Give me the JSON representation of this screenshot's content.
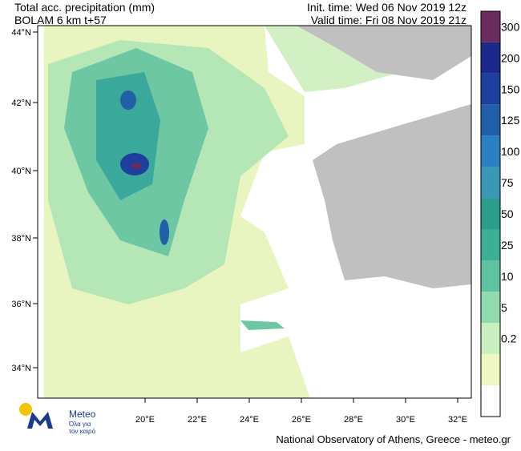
{
  "header": {
    "title": "Total acc. precipitation (mm)",
    "model": "BOLAM 6 km t+57",
    "init_time": "Init. time: Wed 06 Nov 2019 12z",
    "valid_time": "Valid time: Fri 08 Nov 2019 21z"
  },
  "map": {
    "lat_ticks": [
      "44°N",
      "42°N",
      "40°N",
      "38°N",
      "36°N",
      "34°N"
    ],
    "lon_ticks": [
      "20°E",
      "22°E",
      "24°E",
      "26°E",
      "28°E",
      "30°E",
      "32°E"
    ]
  },
  "colorbar": {
    "levels": [
      300,
      200,
      150,
      125,
      100,
      75,
      50,
      25,
      10,
      5,
      0.2
    ],
    "colors": [
      "#6a2b5f",
      "#1b2a8a",
      "#1d3f9e",
      "#2060a8",
      "#2c80c2",
      "#3a98b6",
      "#2b9d8c",
      "#3daf97",
      "#5fc2a1",
      "#92d9ad",
      "#c9efc1",
      "#eef7c2",
      "#ffffff"
    ]
  },
  "logo": {
    "name": "Meteo",
    "tagline_1": "Όλα για",
    "tagline_2": "τον καιρό"
  },
  "footer": "National Observatory of Athens, Greece - meteo.gr"
}
